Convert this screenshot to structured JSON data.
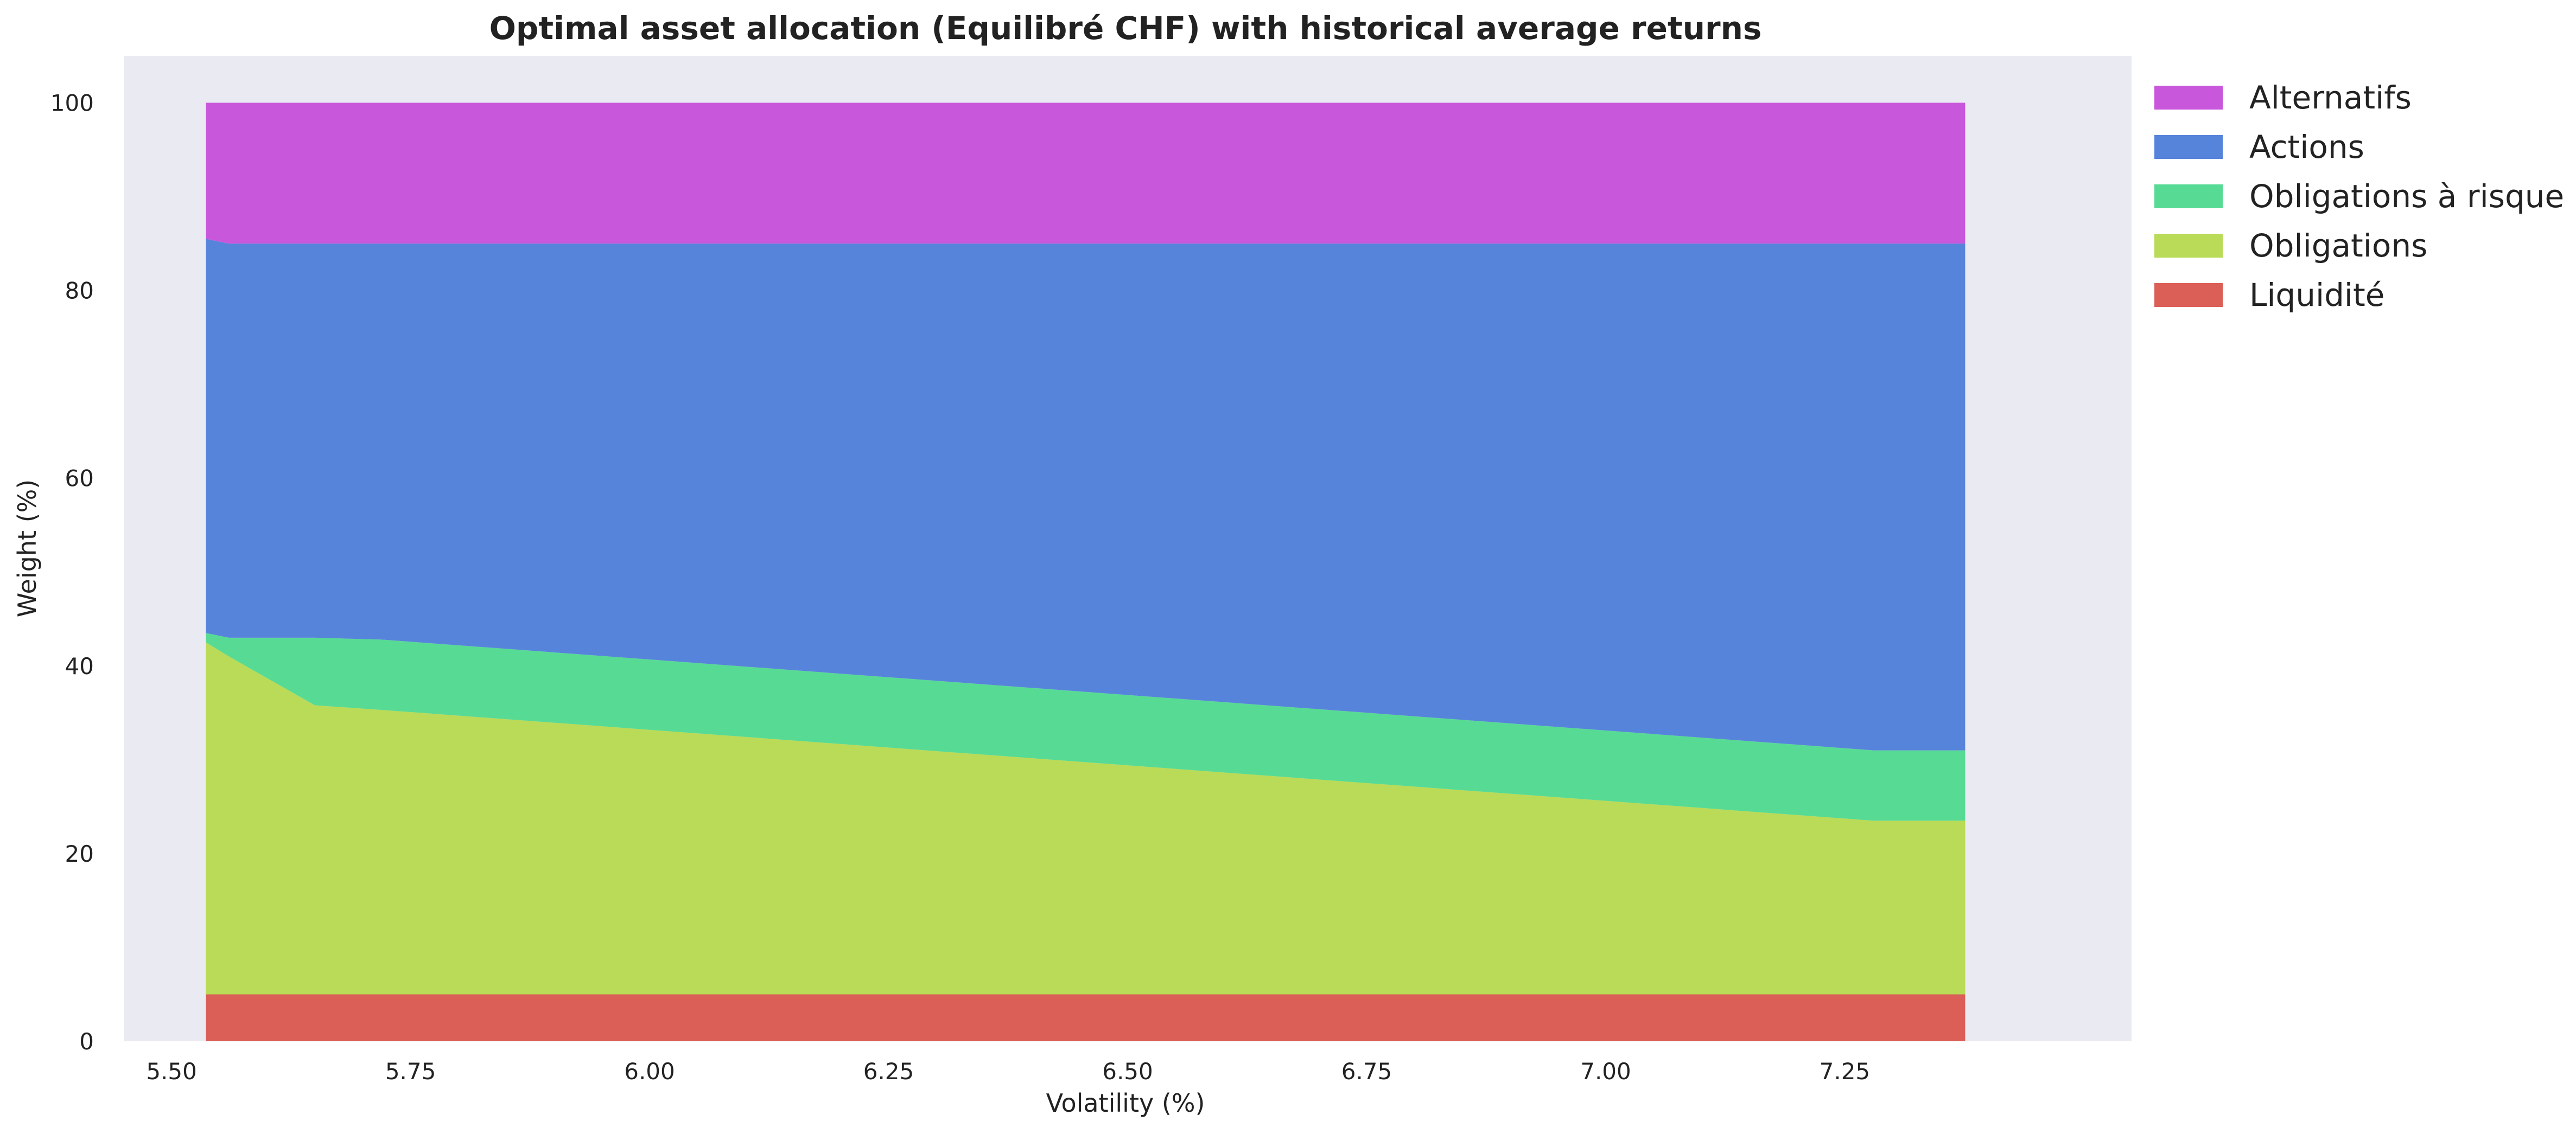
{
  "chart_data": {
    "type": "area",
    "stacked": true,
    "title": "Optimal asset allocation (Equilibré CHF) with historical average returns",
    "xlabel": "Volatility (%)",
    "ylabel": "Weight (%)",
    "xlim": [
      5.45,
      7.55
    ],
    "ylim": [
      0,
      105
    ],
    "xticks": [
      5.5,
      5.75,
      6.0,
      6.25,
      6.5,
      6.75,
      7.0,
      7.25
    ],
    "xtick_labels": [
      "5.50",
      "5.75",
      "6.00",
      "6.25",
      "6.50",
      "6.75",
      "7.00",
      "7.25"
    ],
    "yticks": [
      0,
      20,
      40,
      60,
      80,
      100
    ],
    "ytick_labels": [
      "0",
      "20",
      "40",
      "60",
      "80",
      "100"
    ],
    "grid": false,
    "plot_background": "#eaeaf2",
    "legend_position": "outside-top-right",
    "x": [
      5.536,
      5.56,
      5.65,
      5.72,
      7.28,
      7.376
    ],
    "series": [
      {
        "name": "Liquidité",
        "color": "#db5f57",
        "values": [
          5,
          5,
          5,
          5,
          5,
          5
        ]
      },
      {
        "name": "Obligations",
        "color": "#b9db57",
        "values": [
          37.5,
          36.0,
          30.8,
          30.3,
          18.5,
          18.5
        ]
      },
      {
        "name": "Obligations à risque",
        "color": "#57db94",
        "values": [
          1.0,
          2.0,
          7.2,
          7.5,
          7.5,
          7.5
        ]
      },
      {
        "name": "Actions",
        "color": "#5784db",
        "values": [
          42.0,
          42.0,
          42.0,
          42.2,
          54.0,
          54.0
        ]
      },
      {
        "name": "Alternatifs",
        "color": "#c957db",
        "values": [
          14.5,
          15.0,
          15.0,
          15.0,
          15.0,
          15.0
        ]
      }
    ],
    "legend_order": [
      "Alternatifs",
      "Actions",
      "Obligations à risque",
      "Obligations",
      "Liquidité"
    ]
  }
}
